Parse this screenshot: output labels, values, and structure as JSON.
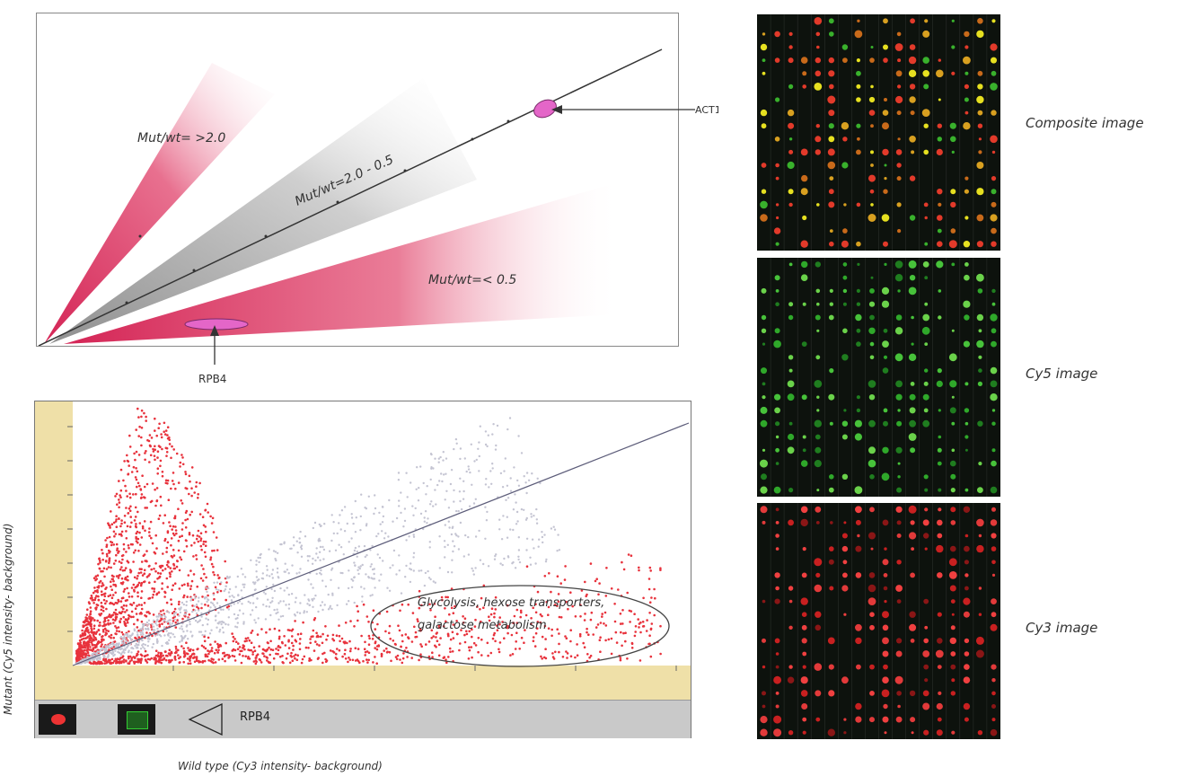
{
  "diagram": {
    "label_high": "Mut/wt= >2.0",
    "label_mid": "Mut/wt=2.0 - 0.5",
    "label_low": "Mut/wt=< 0.5",
    "callout_act": "ACT1",
    "callout_rpb4": "RPB4"
  },
  "scatter": {
    "ylabel": "Mutant (Cy5 intensity- background)",
    "xlabel": "Wild type (Cy3 intensity- background)",
    "annotation": "Glycolysis, hexose transporters, galactose metabolism",
    "selected_gene": "RPB4",
    "colors": {
      "up": "#e8323c",
      "unchanged": "#c4c4d2",
      "down": "#e8323c",
      "axis_bg": "#efe0a8"
    }
  },
  "images": {
    "composite": "Composite image",
    "cy5": "Cy5 image",
    "cy3": "Cy3 image"
  }
}
